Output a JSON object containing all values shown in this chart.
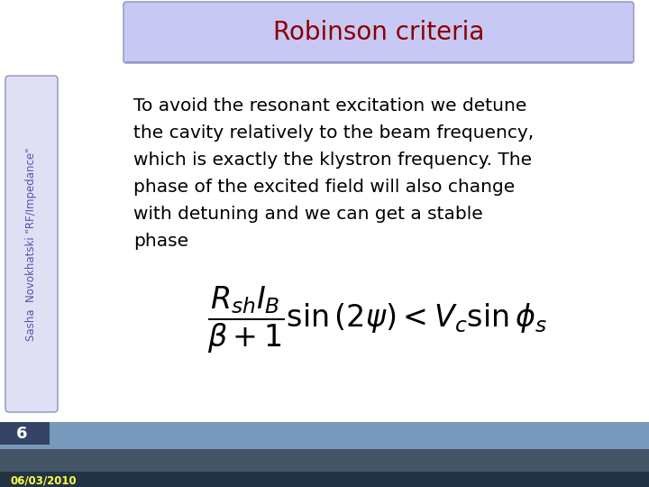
{
  "title": "Robinson criteria",
  "title_color": "#8B0000",
  "title_banner_color": "#C8C8F5",
  "title_banner_border": "#9090C0",
  "bg_color": "#FFFFFF",
  "sidebar_text": "Sasha  Novokhatski \"RF/Impedance\"",
  "sidebar_bg": "#E0E0F5",
  "sidebar_border": "#9090C0",
  "main_text_lines": [
    "To avoid the resonant excitation we detune",
    "the cavity relatively to the beam frequency,",
    "which is exactly the klystron frequency. The",
    "phase of the excited field will also change",
    "with detuning and we can get a stable",
    "phase"
  ],
  "footer_number": "6",
  "footer_date": "06/03/2010",
  "text_color": "#000000",
  "font_size_main": 14.5,
  "font_size_title": 20,
  "font_size_formula": 18
}
